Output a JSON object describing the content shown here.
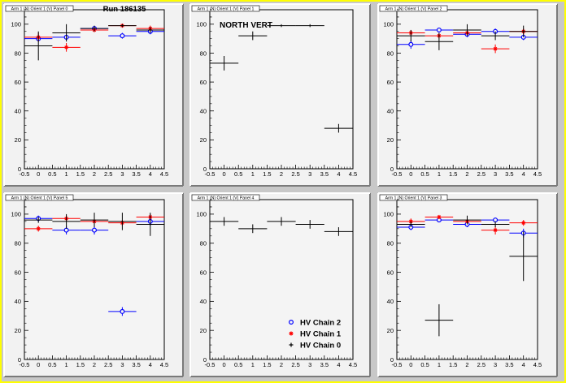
{
  "canvas_title": "Run 186135",
  "x_ticks": [
    "-0.5",
    "0",
    "0.5",
    "1",
    "1.5",
    "2",
    "2.5",
    "3",
    "3.5",
    "4",
    "4.5"
  ],
  "y_ticks": [
    "0",
    "20",
    "40",
    "60",
    "80",
    "100"
  ],
  "legend": [
    {
      "label": "HV Chain 2",
      "color": "#0000ff",
      "marker": "circle"
    },
    {
      "label": "HV Chain 1",
      "color": "#ff0000",
      "marker": "star"
    },
    {
      "label": "HV Chain 0",
      "color": "#000000",
      "marker": "plus"
    }
  ],
  "chart_data": [
    {
      "type": "scatter",
      "title": "Arm 1 (N) Orient 1 (V) Panel 0",
      "xlim": [
        -0.5,
        4.5
      ],
      "ylim": [
        0,
        110
      ],
      "series": [
        {
          "name": "HV Chain 2",
          "color": "#0000ff",
          "marker": "circle",
          "x": [
            0,
            1,
            2,
            3,
            4
          ],
          "y": [
            90,
            91,
            97,
            92,
            95
          ],
          "yerr": [
            2,
            2,
            1.5,
            2,
            2
          ]
        },
        {
          "name": "HV Chain 1",
          "color": "#ff0000",
          "marker": "star",
          "x": [
            0,
            1,
            2,
            3,
            4
          ],
          "y": [
            91,
            84,
            96,
            99,
            97
          ],
          "yerr": [
            3,
            3,
            1.5,
            1,
            2
          ]
        },
        {
          "name": "HV Chain 0",
          "color": "#000000",
          "marker": "plus",
          "x": [
            0,
            1,
            2,
            3,
            4
          ],
          "y": [
            85,
            94,
            97,
            99,
            96
          ],
          "yerr": [
            10,
            6,
            2,
            1,
            2
          ]
        }
      ]
    },
    {
      "type": "scatter",
      "title": "Arm 1 (N) Orient 1 (V) Panel 1",
      "annotation": "NORTH VERT",
      "xlim": [
        -0.5,
        4.5
      ],
      "ylim": [
        0,
        110
      ],
      "series": [
        {
          "name": "HV Chain 0",
          "color": "#000000",
          "marker": "plus",
          "x": [
            0,
            1,
            2,
            3,
            4
          ],
          "y": [
            73,
            92,
            99,
            99,
            28
          ],
          "yerr": [
            5,
            3,
            1,
            1,
            3
          ]
        }
      ]
    },
    {
      "type": "scatter",
      "title": "Arm 1 (N) Orient 1 (V) Panel 2",
      "xlim": [
        -0.5,
        4.5
      ],
      "ylim": [
        0,
        110
      ],
      "series": [
        {
          "name": "HV Chain 2",
          "color": "#0000ff",
          "marker": "circle",
          "x": [
            0,
            1,
            2,
            3,
            4
          ],
          "y": [
            86,
            96,
            93,
            95,
            91
          ],
          "yerr": [
            3,
            1.5,
            2,
            2,
            2
          ]
        },
        {
          "name": "HV Chain 1",
          "color": "#ff0000",
          "marker": "star",
          "x": [
            0,
            1,
            2,
            3,
            4
          ],
          "y": [
            94,
            92,
            94,
            83,
            95
          ],
          "yerr": [
            2,
            2,
            2,
            3,
            2
          ]
        },
        {
          "name": "HV Chain 0",
          "color": "#000000",
          "marker": "plus",
          "x": [
            0,
            1,
            2,
            3,
            4
          ],
          "y": [
            92,
            88,
            96,
            92,
            95
          ],
          "yerr": [
            4,
            6,
            4,
            3,
            4
          ]
        }
      ]
    },
    {
      "type": "scatter",
      "title": "Arm 1 (N) Orient 1 (V) Panel 5",
      "xlim": [
        -0.5,
        4.5
      ],
      "ylim": [
        0,
        110
      ],
      "series": [
        {
          "name": "HV Chain 2",
          "color": "#0000ff",
          "marker": "circle",
          "x": [
            0,
            1,
            2,
            3,
            4
          ],
          "y": [
            97,
            89,
            89,
            33,
            95
          ],
          "yerr": [
            2,
            3,
            3,
            3,
            3
          ]
        },
        {
          "name": "HV Chain 1",
          "color": "#ff0000",
          "marker": "star",
          "x": [
            0,
            1,
            2,
            3,
            4
          ],
          "y": [
            90,
            97,
            95,
            94,
            98
          ],
          "yerr": [
            2,
            2,
            2,
            2,
            2
          ]
        },
        {
          "name": "HV Chain 0",
          "color": "#000000",
          "marker": "plus",
          "x": [
            0,
            1,
            2,
            3,
            4
          ],
          "y": [
            96,
            95,
            96,
            95,
            93
          ],
          "yerr": [
            2,
            5,
            5,
            6,
            8
          ]
        }
      ]
    },
    {
      "type": "scatter",
      "title": "Arm 1 (N) Orient 1 (V) Panel 4",
      "xlim": [
        -0.5,
        4.5
      ],
      "ylim": [
        0,
        110
      ],
      "series": [
        {
          "name": "HV Chain 0",
          "color": "#000000",
          "marker": "plus",
          "x": [
            0,
            1,
            2,
            3,
            4
          ],
          "y": [
            95,
            90,
            95,
            93,
            88
          ],
          "yerr": [
            3,
            3,
            3,
            3,
            3
          ]
        }
      ]
    },
    {
      "type": "scatter",
      "title": "Arm 1 (N) Orient 1 (V) Panel 3",
      "xlim": [
        -0.5,
        4.5
      ],
      "ylim": [
        0,
        110
      ],
      "series": [
        {
          "name": "HV Chain 2",
          "color": "#0000ff",
          "marker": "circle",
          "x": [
            0,
            1,
            2,
            3,
            4
          ],
          "y": [
            91,
            96,
            93,
            96,
            87
          ],
          "yerr": [
            2,
            1.5,
            2,
            1.5,
            3
          ]
        },
        {
          "name": "HV Chain 1",
          "color": "#ff0000",
          "marker": "star",
          "x": [
            0,
            1,
            2,
            3,
            4
          ],
          "y": [
            95,
            98,
            95,
            89,
            94
          ],
          "yerr": [
            2,
            1,
            2,
            3,
            2
          ]
        },
        {
          "name": "HV Chain 0",
          "color": "#000000",
          "marker": "plus",
          "x": [
            0,
            1,
            2,
            3,
            4
          ],
          "y": [
            93,
            27,
            96,
            93,
            71
          ],
          "yerr": [
            2,
            11,
            3,
            2,
            17
          ]
        }
      ]
    }
  ]
}
